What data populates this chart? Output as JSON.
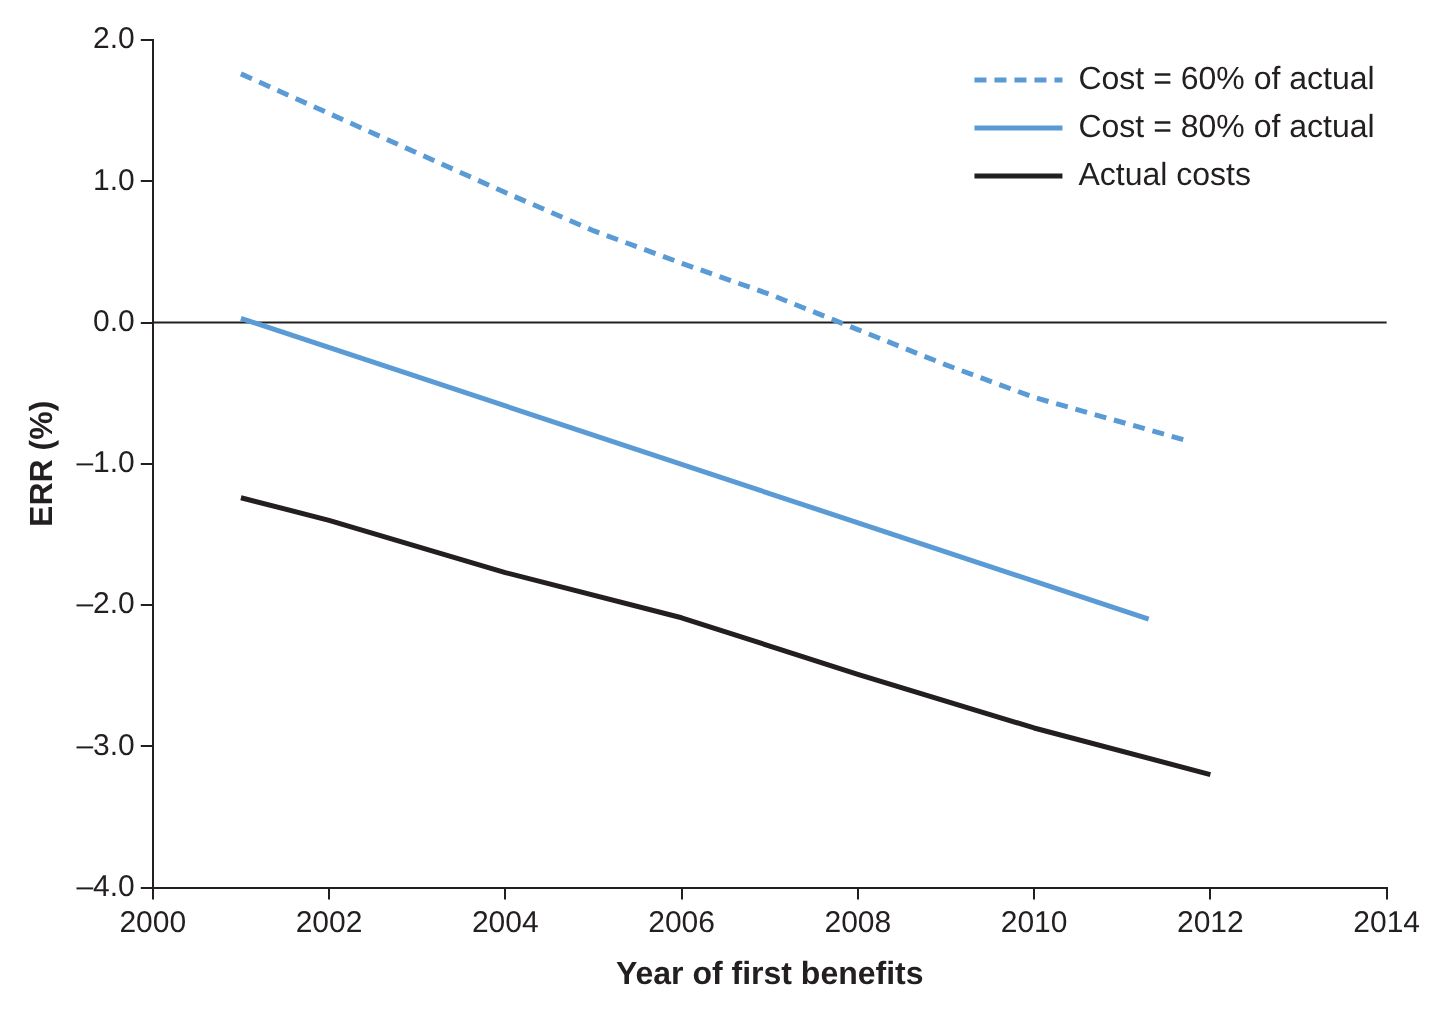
{
  "chart_data": {
    "type": "line",
    "xlabel": "Year of first benefits",
    "ylabel": "ERR (%)",
    "xlim": [
      2000,
      2014
    ],
    "xticks": [
      2000,
      2002,
      2004,
      2006,
      2008,
      2010,
      2012,
      2014
    ],
    "ylim": [
      -4,
      2
    ],
    "yticks": [
      {
        "value": 2,
        "label": "2.0"
      },
      {
        "value": 1,
        "label": "1.0"
      },
      {
        "value": 0,
        "label": "0.0"
      },
      {
        "value": -1,
        "label": "–1.0"
      },
      {
        "value": -2,
        "label": "–2.0"
      },
      {
        "value": -3,
        "label": "–3.0"
      },
      {
        "value": -4,
        "label": "–4.0"
      }
    ],
    "series": [
      {
        "name": "Cost = 60% of actual",
        "color": "#5b9bd5",
        "line_style": "dashed",
        "x": [
          2001,
          2002,
          2003,
          2004,
          2005,
          2006,
          2007,
          2008,
          2009,
          2010,
          2011.7
        ],
        "values": [
          1.76,
          1.48,
          1.2,
          0.92,
          0.65,
          0.42,
          0.2,
          -0.05,
          -0.3,
          -0.53,
          -0.83
        ]
      },
      {
        "name": "Cost = 80% of actual",
        "color": "#5b9bd5",
        "line_style": "solid",
        "x": [
          2001,
          2011.3
        ],
        "values": [
          0.03,
          -2.1
        ]
      },
      {
        "name": "Actual costs",
        "color": "#231f20",
        "line_style": "solid",
        "x": [
          2001,
          2002,
          2004,
          2006,
          2008,
          2010,
          2012
        ],
        "values": [
          -1.24,
          -1.4,
          -1.77,
          -2.09,
          -2.49,
          -2.87,
          -3.2
        ]
      }
    ],
    "ref_lines": [
      {
        "axis": "y",
        "value": 0,
        "color": "#231f20"
      }
    ],
    "grid": false,
    "legend": "top right",
    "marker": "none"
  }
}
